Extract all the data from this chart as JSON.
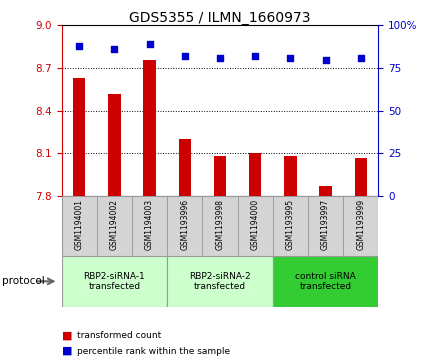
{
  "title": "GDS5355 / ILMN_1660973",
  "samples": [
    "GSM1194001",
    "GSM1194002",
    "GSM1194003",
    "GSM1193996",
    "GSM1193998",
    "GSM1194000",
    "GSM1193995",
    "GSM1193997",
    "GSM1193999"
  ],
  "bar_values": [
    8.63,
    8.52,
    8.76,
    8.2,
    8.08,
    8.1,
    8.08,
    7.87,
    8.07
  ],
  "percentile_values": [
    88,
    86,
    89,
    82,
    81,
    82,
    81,
    80,
    81
  ],
  "bar_color": "#cc0000",
  "dot_color": "#0000cc",
  "ylim_left": [
    7.8,
    9.0
  ],
  "ylim_right": [
    0,
    100
  ],
  "yticks_left": [
    7.8,
    8.1,
    8.4,
    8.7,
    9.0
  ],
  "yticks_right": [
    0,
    25,
    50,
    75,
    100
  ],
  "groups": [
    {
      "label": "RBP2-siRNA-1\ntransfected",
      "start": 0,
      "end": 3,
      "color": "#ccffcc"
    },
    {
      "label": "RBP2-siRNA-2\ntransfected",
      "start": 3,
      "end": 6,
      "color": "#ccffcc"
    },
    {
      "label": "control siRNA\ntransfected",
      "start": 6,
      "end": 9,
      "color": "#33cc33"
    }
  ],
  "protocol_label": "protocol",
  "legend_bar_label": "transformed count",
  "legend_dot_label": "percentile rank within the sample",
  "bar_width": 0.35,
  "title_fontsize": 10,
  "axis_label_color_left": "#cc0000",
  "axis_label_color_right": "#0000cc",
  "sample_box_color": "#d4d4d4",
  "sample_box_border": "#999999",
  "group_border": "#999999"
}
